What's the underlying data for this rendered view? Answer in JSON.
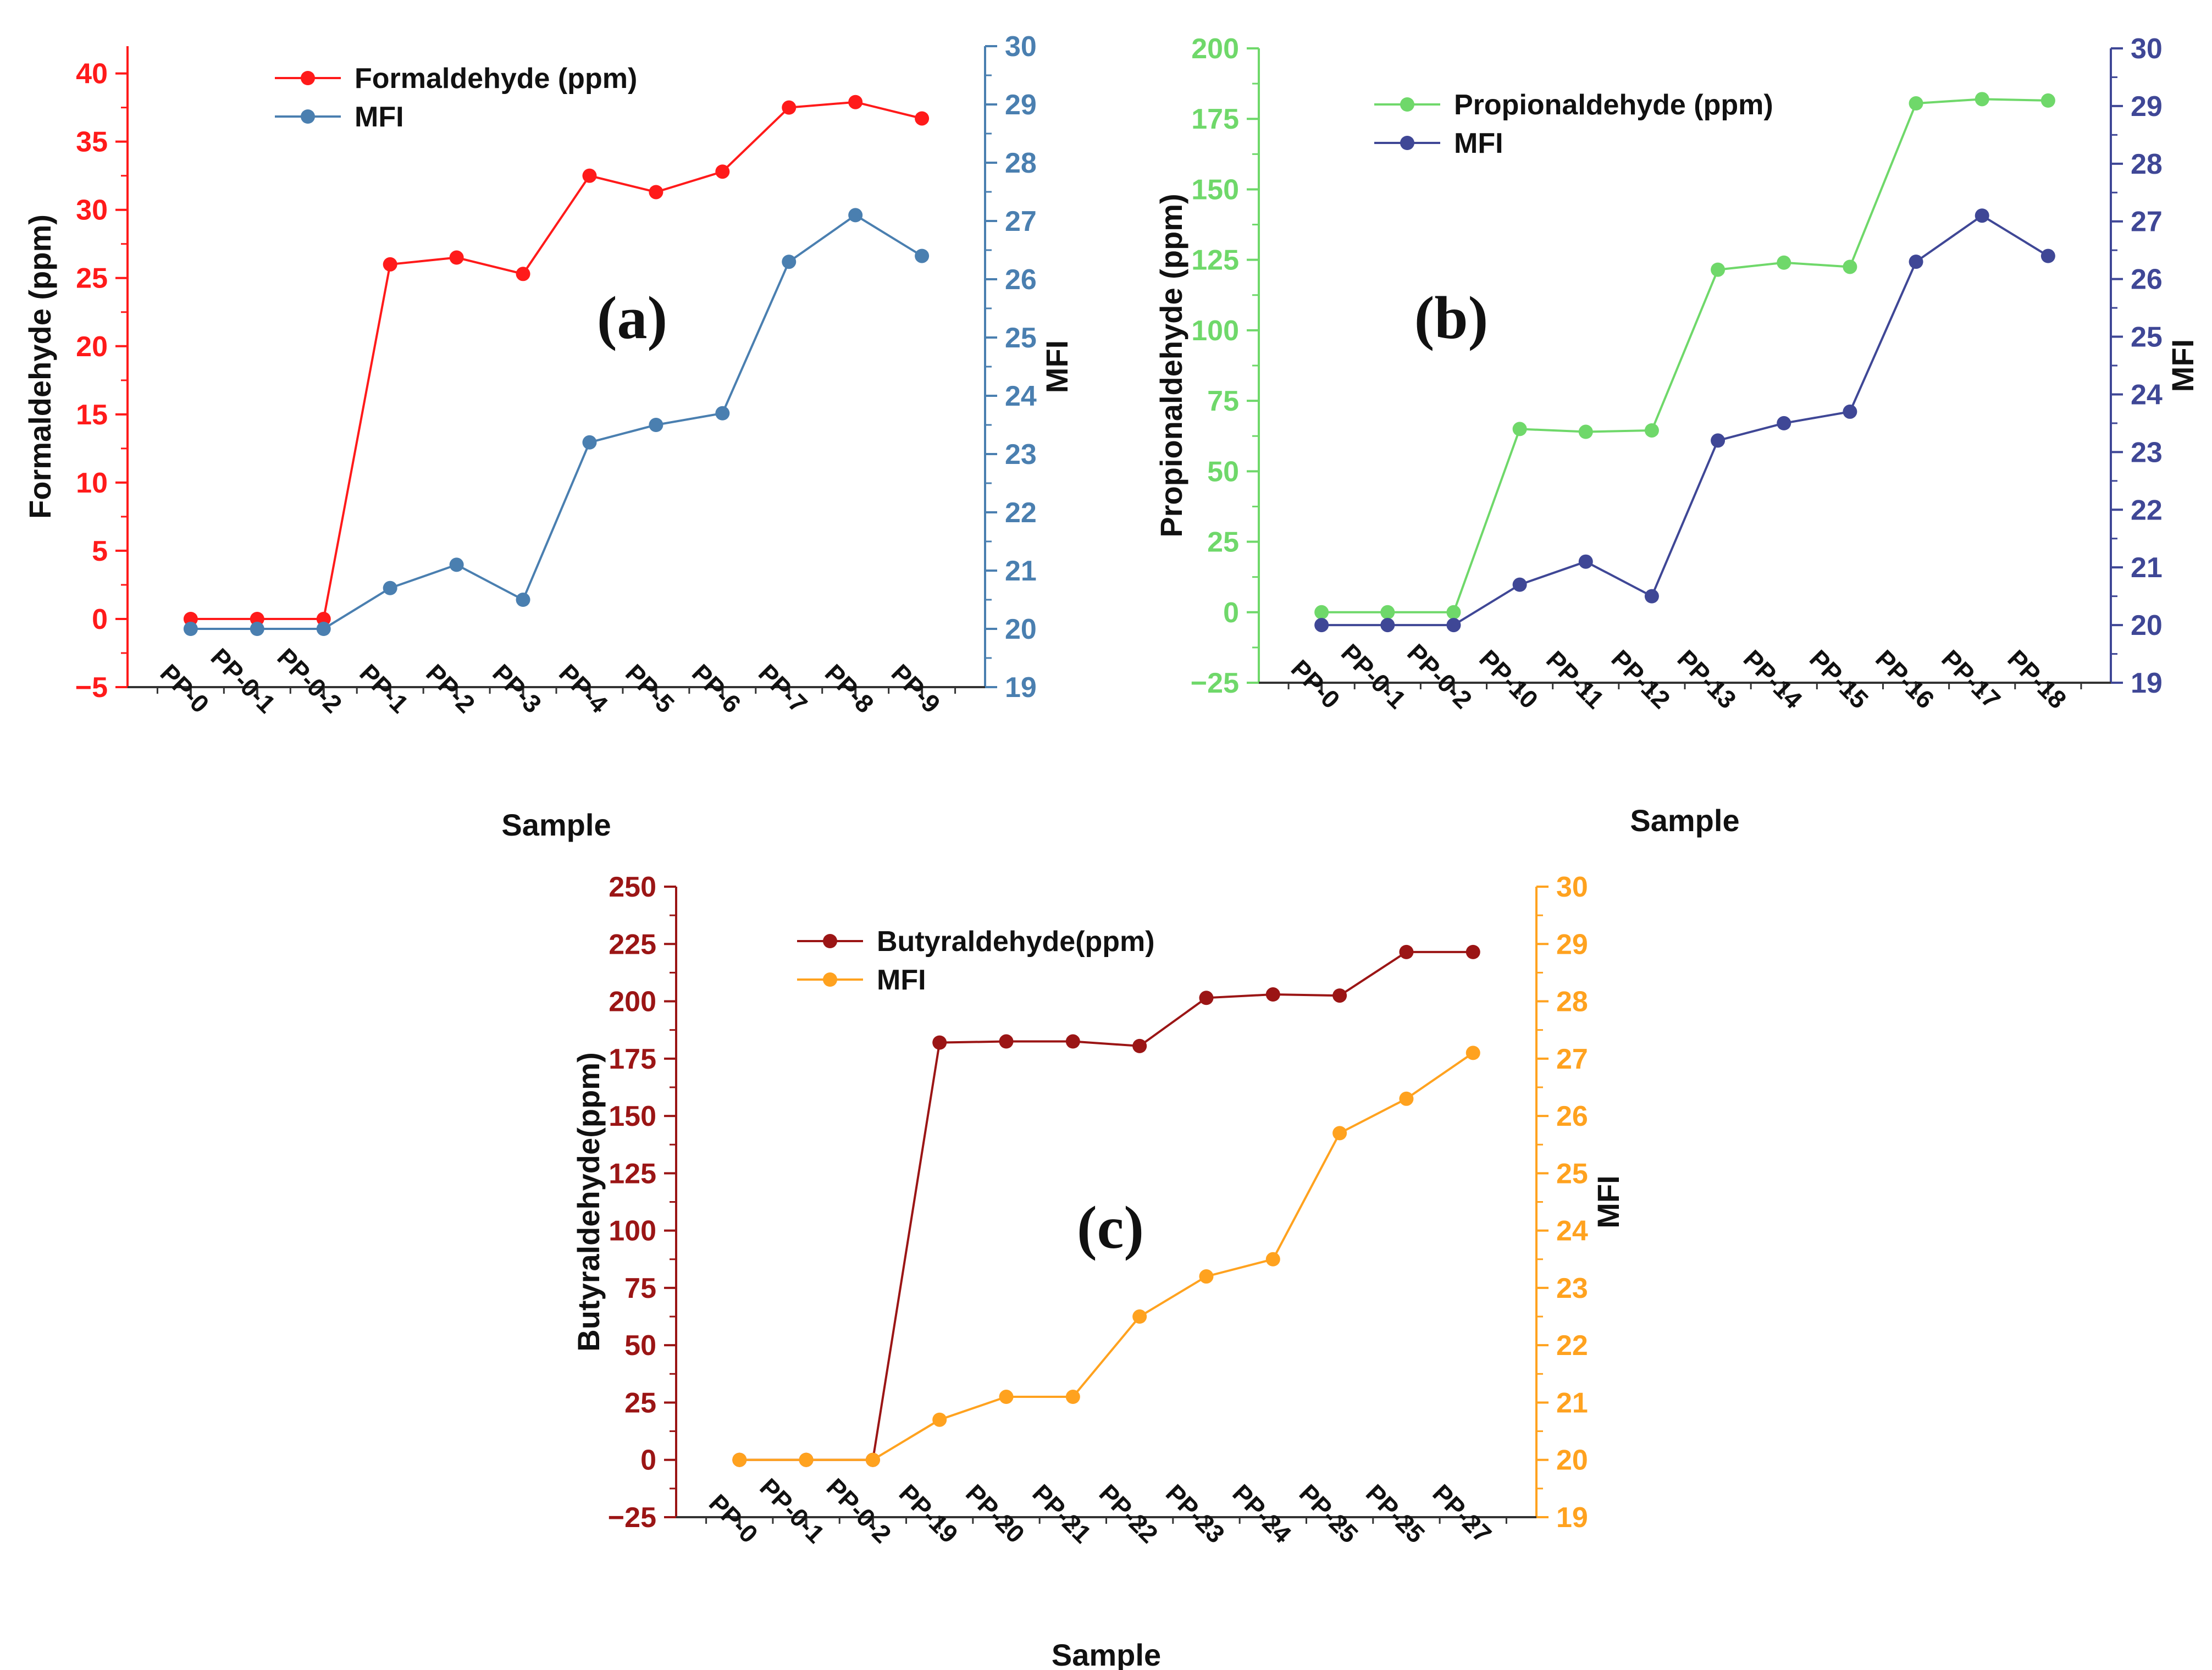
{
  "colors": {
    "formaldehyde": "#ff1a1a",
    "mfi_a": "#4a7fb0",
    "propionaldehyde": "#6fd86a",
    "mfi_b": "#3f4796",
    "butyraldehyde": "#9b1515",
    "mfi_c": "#ffa21f",
    "axis": "#333333"
  },
  "chart_data": [
    {
      "type": "line",
      "panel_label": "(a)",
      "xlabel": "Sample",
      "ylabel": "Formaldehyde (ppm)",
      "y2label": "MFI",
      "categories": [
        "PP-0",
        "PP-0-1",
        "PP-0-2",
        "PP-1",
        "PP-2",
        "PP-3",
        "PP-4",
        "PP-5",
        "PP-6",
        "PP-7",
        "PP-8",
        "PP-9"
      ],
      "ylim": [
        -5,
        42
      ],
      "yticks": [
        -5,
        0,
        5,
        10,
        15,
        20,
        25,
        30,
        35,
        40
      ],
      "y2lim": [
        19,
        30
      ],
      "y2ticks": [
        19,
        20,
        21,
        22,
        23,
        24,
        25,
        26,
        27,
        28,
        29,
        30
      ],
      "grid": false,
      "legend_position": "top-left",
      "series": [
        {
          "name": "Formaldehyde (ppm)",
          "axis": "left",
          "color": "#ff1a1a",
          "values": [
            0,
            0,
            0,
            26.0,
            26.5,
            25.3,
            32.5,
            31.3,
            32.8,
            37.5,
            37.9,
            36.7
          ]
        },
        {
          "name": "MFI",
          "axis": "right",
          "color": "#4a7fb0",
          "values": [
            20.0,
            20.0,
            20.0,
            20.7,
            21.1,
            20.5,
            23.2,
            23.5,
            23.7,
            26.3,
            27.1,
            26.4
          ]
        }
      ]
    },
    {
      "type": "line",
      "panel_label": "(b)",
      "xlabel": "Sample",
      "ylabel": "Propionaldehyde (ppm)",
      "y2label": "MFI",
      "categories": [
        "PP-0",
        "PP-0-1",
        "PP-0-2",
        "PP-10",
        "PP-11",
        "PP-12",
        "PP-13",
        "PP-14",
        "PP-15",
        "PP-16",
        "PP-17",
        "PP-18"
      ],
      "ylim": [
        -25,
        200
      ],
      "yticks": [
        -25,
        0,
        25,
        50,
        75,
        100,
        125,
        150,
        175,
        200
      ],
      "y2lim": [
        19,
        30
      ],
      "y2ticks": [
        19,
        20,
        21,
        22,
        23,
        24,
        25,
        26,
        27,
        28,
        29,
        30
      ],
      "grid": false,
      "legend_position": "top-left",
      "series": [
        {
          "name": "Propionaldehyde (ppm)",
          "axis": "left",
          "color": "#6fd86a",
          "values": [
            0,
            0,
            0,
            65,
            64,
            64.5,
            121.5,
            124,
            122.5,
            180.5,
            182,
            181.5
          ]
        },
        {
          "name": "MFI",
          "axis": "right",
          "color": "#3f4796",
          "values": [
            20.0,
            20.0,
            20.0,
            20.7,
            21.1,
            20.5,
            23.2,
            23.5,
            23.7,
            26.3,
            27.1,
            26.4
          ]
        }
      ]
    },
    {
      "type": "line",
      "panel_label": "(c)",
      "xlabel": "Sample",
      "ylabel": "Butyraldehyde(ppm)",
      "y2label": "MFI",
      "categories": [
        "PP-0",
        "PP-0-1",
        "PP-0-2",
        "PP-19",
        "PP-20",
        "PP-21",
        "PP-22",
        "PP-23",
        "PP-24",
        "PP-25",
        "PP-25",
        "PP-27"
      ],
      "ylim": [
        -25,
        250
      ],
      "yticks": [
        -25,
        0,
        25,
        50,
        75,
        100,
        125,
        150,
        175,
        200,
        225,
        250
      ],
      "y2lim": [
        19,
        30
      ],
      "y2ticks": [
        19,
        20,
        21,
        22,
        23,
        24,
        25,
        26,
        27,
        28,
        29,
        30
      ],
      "grid": false,
      "legend_position": "top-left",
      "series": [
        {
          "name": "Butyraldehyde(ppm)",
          "axis": "left",
          "color": "#9b1515",
          "values": [
            0,
            0,
            0,
            182,
            182.5,
            182.5,
            180.5,
            201.5,
            203,
            202.5,
            221.5,
            221.5
          ]
        },
        {
          "name": "MFI",
          "axis": "right",
          "color": "#ffa21f",
          "values": [
            20.0,
            20.0,
            20.0,
            20.7,
            21.1,
            21.1,
            22.5,
            23.2,
            23.5,
            25.7,
            26.3,
            27.1
          ]
        }
      ]
    }
  ]
}
